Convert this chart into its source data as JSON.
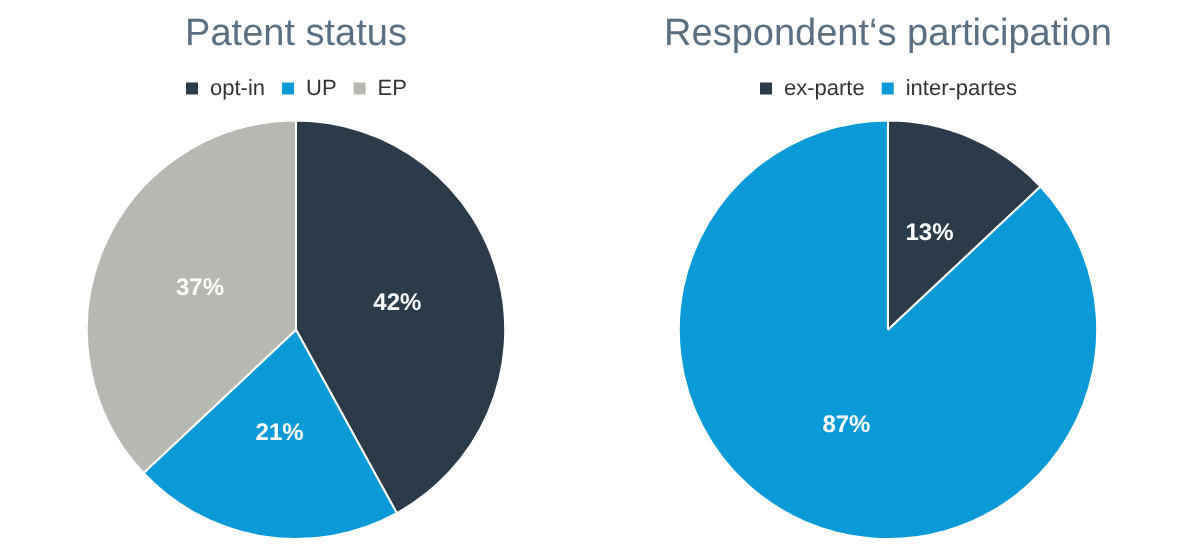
{
  "chart_data": [
    {
      "type": "pie",
      "title": "Patent status",
      "categories": [
        "opt-in",
        "UP",
        "EP"
      ],
      "values": [
        42,
        21,
        37
      ],
      "colors": [
        "#2c3b4a",
        "#0a9ad8",
        "#b6b9b1"
      ],
      "value_labels": [
        "42%",
        "21%",
        "37%"
      ],
      "legend": "top"
    },
    {
      "type": "pie",
      "title": "Respondent‘s participation",
      "categories": [
        "ex-parte",
        "inter-partes"
      ],
      "values": [
        13,
        87
      ],
      "colors": [
        "#2c3b4a",
        "#0a9ad8"
      ],
      "value_labels": [
        "13%",
        "87%"
      ],
      "legend": "top"
    }
  ]
}
